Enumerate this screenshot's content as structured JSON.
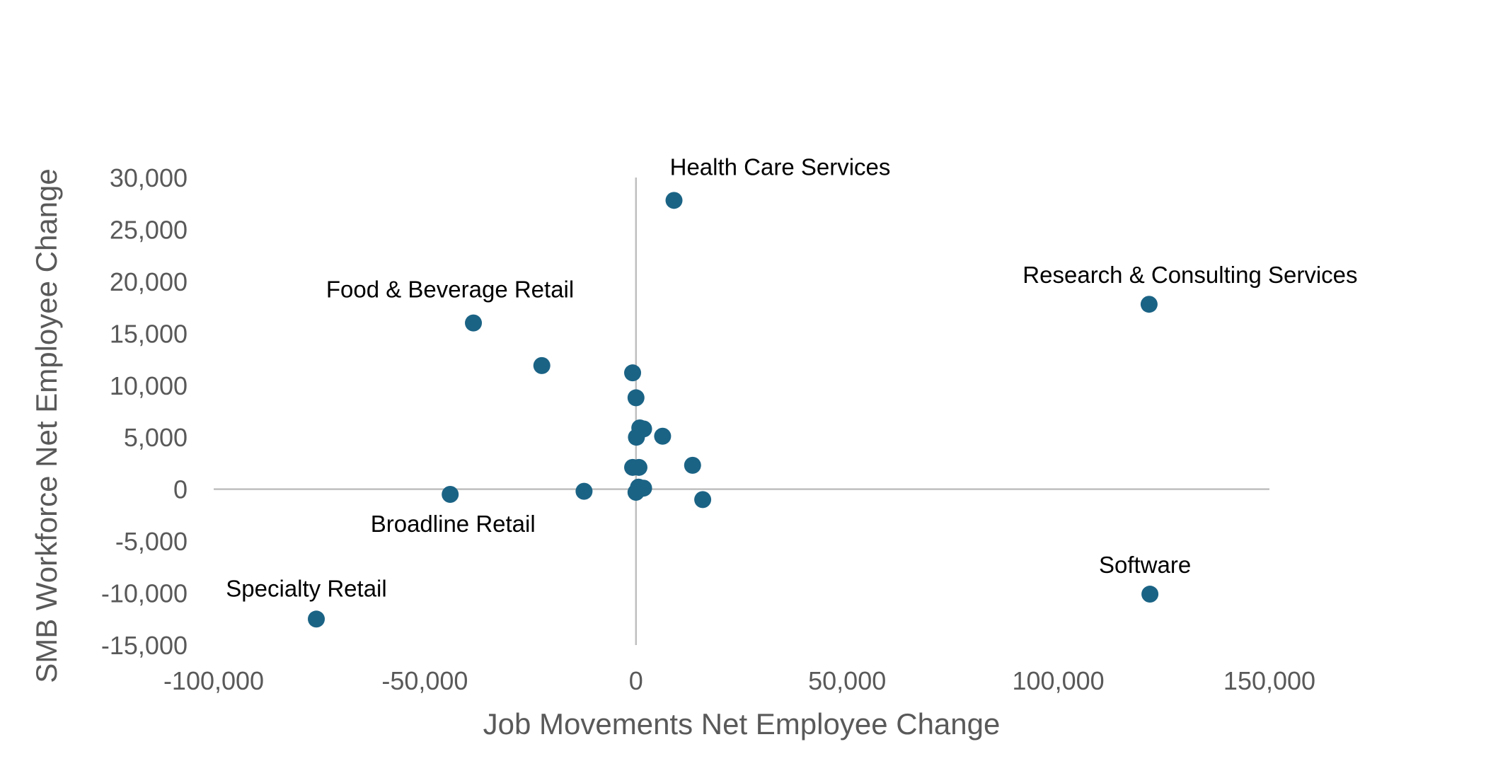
{
  "chart_data": {
    "type": "scatter",
    "title": "",
    "xlabel": "Job Movements Net Employee Change",
    "ylabel": "SMB Workforce Net Employee Change",
    "xlim": [
      -100000,
      150000
    ],
    "ylim": [
      -15000,
      30000
    ],
    "x_ticks": [
      "-100,000",
      "-50,000",
      "0",
      "50,000",
      "100,000",
      "150,000"
    ],
    "y_ticks": [
      "30,000",
      "25,000",
      "20,000",
      "15,000",
      "10,000",
      "5,000",
      "0",
      "-5,000",
      "-10,000",
      "-15,000"
    ],
    "grid": false,
    "legend": "none",
    "marker_color": "#1b6385",
    "axis_line_color": "#bfbfbf",
    "points": [
      {
        "x": 9000,
        "y": 27800,
        "label": "Health Care Services"
      },
      {
        "x": 121500,
        "y": 17800,
        "label": "Research & Consulting Services"
      },
      {
        "x": -38500,
        "y": 16000,
        "label": "Food & Beverage Retail"
      },
      {
        "x": -22300,
        "y": 11900,
        "label": ""
      },
      {
        "x": -800,
        "y": 11200,
        "label": ""
      },
      {
        "x": 0,
        "y": 8800,
        "label": ""
      },
      {
        "x": 900,
        "y": 5900,
        "label": ""
      },
      {
        "x": 1800,
        "y": 5800,
        "label": ""
      },
      {
        "x": 6300,
        "y": 5100,
        "label": ""
      },
      {
        "x": 100,
        "y": 5000,
        "label": ""
      },
      {
        "x": 13400,
        "y": 2300,
        "label": ""
      },
      {
        "x": -800,
        "y": 2100,
        "label": ""
      },
      {
        "x": 700,
        "y": 2100,
        "label": ""
      },
      {
        "x": 600,
        "y": 200,
        "label": ""
      },
      {
        "x": 1800,
        "y": 100,
        "label": ""
      },
      {
        "x": 0,
        "y": -300,
        "label": ""
      },
      {
        "x": -12300,
        "y": -200,
        "label": ""
      },
      {
        "x": -44000,
        "y": -500,
        "label": "Broadline Retail"
      },
      {
        "x": 15800,
        "y": -1000,
        "label": ""
      },
      {
        "x": 121700,
        "y": -10100,
        "label": "Software"
      },
      {
        "x": -75700,
        "y": -12500,
        "label": "Specialty Retail"
      }
    ]
  }
}
